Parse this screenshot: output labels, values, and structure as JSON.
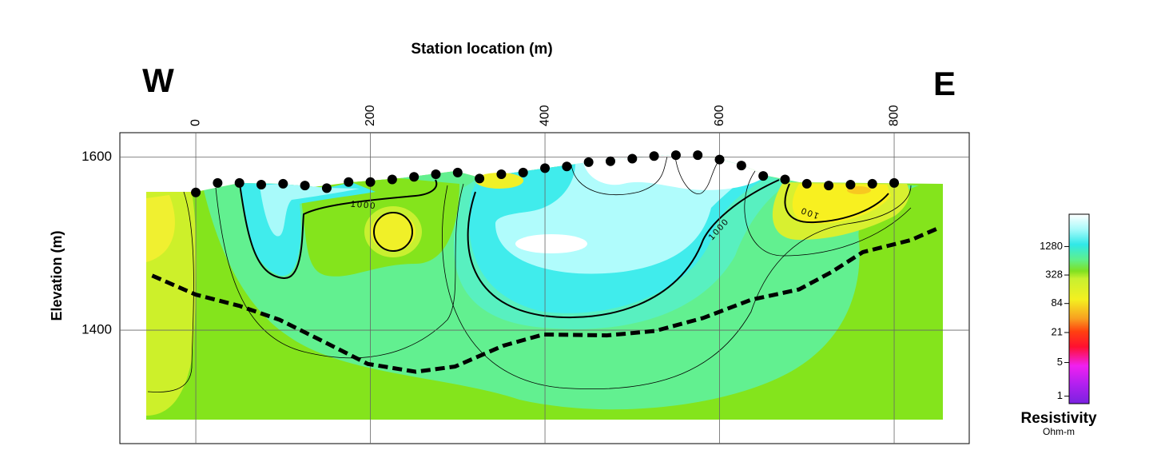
{
  "chart_data": {
    "type": "scatter",
    "title": "Station location (m)",
    "ylabel": "Elevation (m)",
    "west_label": "W",
    "east_label": "E",
    "xlim": [
      -87,
      886
    ],
    "ylim": [
      1269,
      1628
    ],
    "xticks": [
      0,
      200,
      400,
      600,
      800
    ],
    "yticks": [
      1400,
      1600
    ],
    "grid": true,
    "series": [
      {
        "color": "#000000",
        "style": "markers",
        "x": [
          0,
          25,
          50,
          75,
          100,
          125,
          150,
          175,
          200,
          225,
          250,
          275,
          300,
          325,
          350,
          375,
          400,
          425,
          450,
          475,
          500,
          525,
          550,
          575,
          600,
          625,
          650,
          675,
          700,
          725,
          750,
          775,
          800
        ],
        "values": [
          1559,
          1570,
          1570,
          1568,
          1569,
          1567,
          1564,
          1571,
          1571,
          1574,
          1577,
          1580,
          1582,
          1575,
          1580,
          1582,
          1587,
          1589,
          1594,
          1595,
          1598,
          1601,
          1602,
          1602,
          1597,
          1590,
          1578,
          1574,
          1569,
          1567,
          1568,
          1569,
          1570
        ]
      },
      {
        "color": "#000000",
        "style": "dashed",
        "x": [
          -50,
          0,
          50,
          96,
          142,
          197,
          252,
          297,
          352,
          398,
          471,
          526,
          581,
          636,
          691,
          728,
          764,
          819,
          851
        ],
        "values": [
          1463,
          1441,
          1428,
          1412,
          1389,
          1361,
          1352,
          1358,
          1382,
          1395,
          1394,
          1399,
          1414,
          1435,
          1447,
          1467,
          1490,
          1504,
          1518
        ]
      }
    ],
    "contour_labels": [
      1000,
      1000,
      100
    ],
    "colorbar": {
      "label": "Resistivity",
      "unit": "Ohm-m",
      "log": true,
      "lim": [
        0.7,
        6000
      ],
      "ticks": [
        1,
        5,
        21,
        84,
        328,
        1280
      ]
    }
  }
}
